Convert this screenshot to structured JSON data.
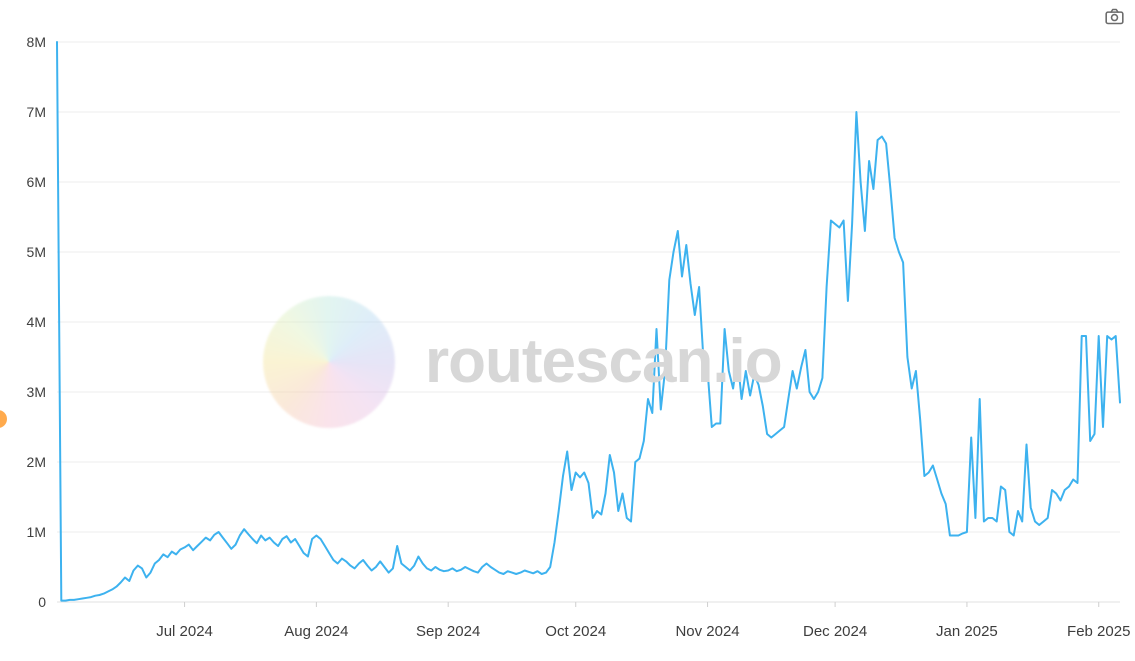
{
  "watermark": {
    "text": "routescan.io"
  },
  "chart_data": {
    "type": "line",
    "title": "",
    "line_color": "#3db2ef",
    "grid_color": "#ededed",
    "axis_line_color": "#e2e2e2",
    "ylim_millions": [
      0,
      8
    ],
    "y_tick_labels": [
      "0",
      "1M",
      "2M",
      "3M",
      "4M",
      "5M",
      "6M",
      "7M",
      "8M"
    ],
    "x_tick_labels": [
      "Jul 2024",
      "Aug 2024",
      "Sep 2024",
      "Oct 2024",
      "Nov 2024",
      "Dec 2024",
      "Jan 2025",
      "Feb 2025"
    ],
    "x_tick_day_indices": [
      30,
      61,
      92,
      122,
      153,
      183,
      214,
      245
    ],
    "x_start_date": "2024-06-01",
    "x_end_date": "2025-02-06",
    "grid_on": true,
    "legend": "none",
    "values_millions": [
      8.0,
      0.02,
      0.02,
      0.03,
      0.03,
      0.04,
      0.05,
      0.06,
      0.07,
      0.09,
      0.1,
      0.12,
      0.15,
      0.18,
      0.22,
      0.28,
      0.35,
      0.3,
      0.45,
      0.52,
      0.48,
      0.35,
      0.42,
      0.55,
      0.6,
      0.68,
      0.64,
      0.72,
      0.68,
      0.75,
      0.78,
      0.82,
      0.74,
      0.8,
      0.86,
      0.92,
      0.88,
      0.96,
      1.0,
      0.92,
      0.84,
      0.76,
      0.82,
      0.95,
      1.04,
      0.97,
      0.9,
      0.84,
      0.95,
      0.88,
      0.92,
      0.85,
      0.8,
      0.9,
      0.94,
      0.85,
      0.9,
      0.8,
      0.7,
      0.65,
      0.9,
      0.95,
      0.9,
      0.8,
      0.7,
      0.6,
      0.55,
      0.62,
      0.58,
      0.52,
      0.48,
      0.55,
      0.6,
      0.52,
      0.45,
      0.5,
      0.58,
      0.5,
      0.42,
      0.48,
      0.8,
      0.55,
      0.5,
      0.45,
      0.52,
      0.65,
      0.55,
      0.48,
      0.45,
      0.5,
      0.46,
      0.44,
      0.45,
      0.48,
      0.44,
      0.46,
      0.5,
      0.47,
      0.44,
      0.42,
      0.5,
      0.55,
      0.5,
      0.46,
      0.42,
      0.4,
      0.44,
      0.42,
      0.4,
      0.42,
      0.45,
      0.43,
      0.41,
      0.44,
      0.4,
      0.42,
      0.5,
      0.85,
      1.3,
      1.8,
      2.15,
      1.6,
      1.85,
      1.78,
      1.85,
      1.7,
      1.2,
      1.3,
      1.25,
      1.55,
      2.1,
      1.85,
      1.3,
      1.55,
      1.2,
      1.15,
      2.0,
      2.05,
      2.3,
      2.9,
      2.7,
      3.9,
      2.75,
      3.3,
      4.6,
      5.0,
      5.3,
      4.65,
      5.1,
      4.55,
      4.1,
      4.5,
      3.5,
      3.3,
      2.5,
      2.55,
      2.55,
      3.9,
      3.3,
      3.05,
      3.5,
      2.9,
      3.3,
      2.95,
      3.25,
      3.1,
      2.8,
      2.4,
      2.35,
      2.4,
      2.45,
      2.5,
      2.9,
      3.3,
      3.05,
      3.35,
      3.6,
      3.0,
      2.9,
      3.0,
      3.2,
      4.5,
      5.45,
      5.4,
      5.35,
      5.45,
      4.3,
      5.4,
      7.0,
      6.0,
      5.3,
      6.3,
      5.9,
      6.6,
      6.65,
      6.55,
      5.9,
      5.2,
      5.0,
      4.85,
      3.5,
      3.05,
      3.3,
      2.6,
      1.8,
      1.85,
      1.95,
      1.75,
      1.55,
      1.4,
      0.95,
      0.95,
      0.95,
      0.98,
      1.0,
      2.35,
      1.2,
      2.9,
      1.15,
      1.2,
      1.2,
      1.15,
      1.65,
      1.6,
      1.0,
      0.95,
      1.3,
      1.15,
      2.25,
      1.35,
      1.15,
      1.1,
      1.15,
      1.2,
      1.6,
      1.55,
      1.45,
      1.6,
      1.65,
      1.75,
      1.7,
      3.8,
      3.8,
      2.3,
      2.4,
      3.8,
      2.5,
      3.8,
      3.75,
      3.8,
      2.85
    ]
  }
}
